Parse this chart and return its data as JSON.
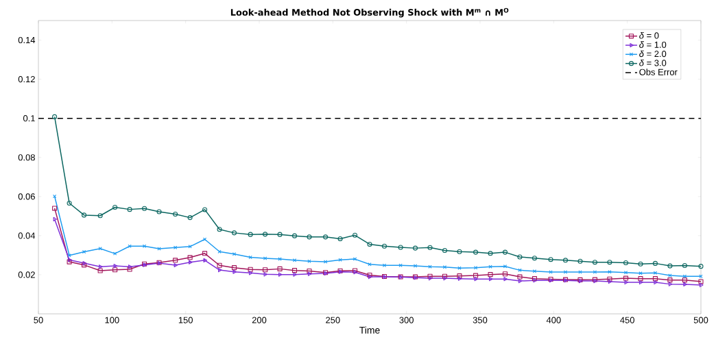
{
  "chart_data": {
    "type": "line",
    "title": "Look-ahead Method Not Observing Shock with M$^{m}$ ∩ M$^{O}$",
    "xlabel": "Time",
    "x": [
      61,
      71,
      81,
      92,
      102,
      112,
      122,
      132,
      143,
      153,
      163,
      173,
      183,
      194,
      204,
      214,
      224,
      234,
      245,
      255,
      265,
      275,
      285,
      296,
      306,
      316,
      326,
      336,
      347,
      357,
      367,
      377,
      387,
      398,
      408,
      418,
      428,
      438,
      449,
      459,
      469,
      479,
      489,
      500
    ],
    "series": [
      {
        "name": "*δ* = 0",
        "color": "#a2145a",
        "marker": "square",
        "values": [
          0.054,
          0.0266,
          0.025,
          0.0221,
          0.0225,
          0.0228,
          0.0255,
          0.0262,
          0.0274,
          0.0288,
          0.0309,
          0.0248,
          0.0236,
          0.0227,
          0.0225,
          0.023,
          0.0222,
          0.0219,
          0.0211,
          0.022,
          0.0221,
          0.0198,
          0.0191,
          0.0189,
          0.0189,
          0.0192,
          0.0192,
          0.0194,
          0.0196,
          0.0201,
          0.0204,
          0.0189,
          0.018,
          0.0177,
          0.0175,
          0.0174,
          0.0175,
          0.0178,
          0.0182,
          0.018,
          0.018,
          0.0173,
          0.0173,
          0.0165
        ]
      },
      {
        "name": "*δ* = 1.0",
        "color": "#7e2fd8",
        "marker": "triangle",
        "values": [
          0.0484,
          0.0276,
          0.0259,
          0.0241,
          0.0245,
          0.0241,
          0.025,
          0.0259,
          0.0249,
          0.0264,
          0.0274,
          0.0224,
          0.0215,
          0.0209,
          0.0202,
          0.0201,
          0.0201,
          0.0204,
          0.0207,
          0.0215,
          0.0213,
          0.0189,
          0.0189,
          0.0188,
          0.0185,
          0.0182,
          0.0182,
          0.018,
          0.0178,
          0.0178,
          0.0178,
          0.0168,
          0.0171,
          0.0171,
          0.0171,
          0.0168,
          0.0168,
          0.0165,
          0.0161,
          0.0161,
          0.0161,
          0.0152,
          0.0151,
          0.0147
        ]
      },
      {
        "name": "*δ* = 2.0",
        "color": "#1e9bf0",
        "marker": "cross",
        "values": [
          0.0601,
          0.0299,
          0.0317,
          0.0334,
          0.0308,
          0.0346,
          0.0346,
          0.0333,
          0.0339,
          0.0344,
          0.0381,
          0.0318,
          0.0306,
          0.0289,
          0.0284,
          0.028,
          0.0274,
          0.0269,
          0.0266,
          0.0276,
          0.028,
          0.0253,
          0.0248,
          0.0248,
          0.0245,
          0.0241,
          0.0239,
          0.0234,
          0.0236,
          0.0241,
          0.0243,
          0.0223,
          0.0218,
          0.0214,
          0.0214,
          0.0214,
          0.0214,
          0.0215,
          0.0211,
          0.0208,
          0.0209,
          0.0196,
          0.0192,
          0.0192
        ]
      },
      {
        "name": "*δ* = 3.0",
        "color": "#0b6660",
        "marker": "circle",
        "values": [
          0.1008,
          0.0566,
          0.0505,
          0.0502,
          0.0545,
          0.0534,
          0.0539,
          0.0522,
          0.051,
          0.0492,
          0.0533,
          0.0432,
          0.0414,
          0.0406,
          0.0407,
          0.0406,
          0.0399,
          0.0393,
          0.0393,
          0.0384,
          0.0402,
          0.0356,
          0.0346,
          0.034,
          0.0336,
          0.0339,
          0.0324,
          0.0318,
          0.0315,
          0.0309,
          0.0315,
          0.0291,
          0.0285,
          0.0278,
          0.0274,
          0.0269,
          0.0264,
          0.0264,
          0.0261,
          0.0255,
          0.0258,
          0.0245,
          0.0247,
          0.0243
        ]
      }
    ],
    "ref_lines": [
      {
        "axis": "y",
        "value": 0.1,
        "label": "Obs Error",
        "color": "#000000",
        "line_style": "dashed"
      }
    ],
    "xlim": [
      50,
      500
    ],
    "ylim": [
      0,
      0.15
    ],
    "xticks": [
      50,
      100,
      150,
      200,
      250,
      300,
      350,
      400,
      450,
      500
    ],
    "yticks": [
      0.02,
      0.04,
      0.06,
      0.08,
      0.1,
      0.12,
      0.14
    ],
    "grid": false,
    "legend": "top right"
  }
}
